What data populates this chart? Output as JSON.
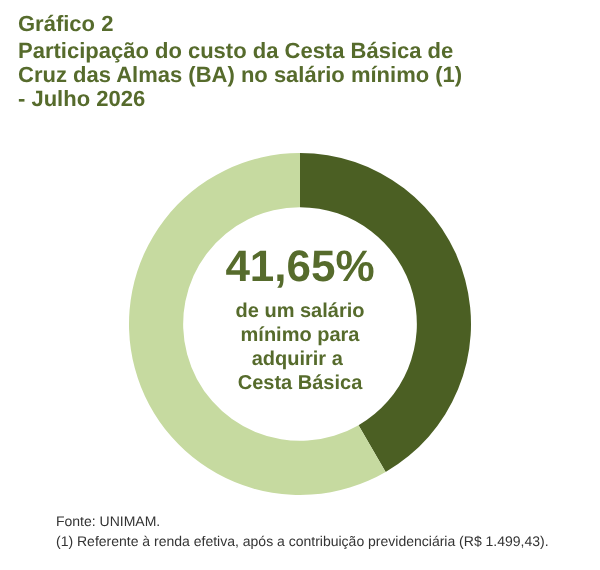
{
  "chart_data": {
    "type": "donut",
    "title": "Gráfico 2",
    "subtitle": "Participação do custo da Cesta Básica de Cruz das Almas (BA) no salário mínimo (1) - Julho 2026",
    "categories": [
      null,
      null
    ],
    "values": [
      41.65,
      58.35
    ],
    "colors": [
      "#4b5f23",
      "#c6daa0"
    ],
    "value_labels": [
      "41,65%",
      null
    ],
    "annotations": [
      "de um salário mínimo para adquirir a Cesta Básica",
      "Fonte: UNIMAM.",
      "(1) Referente à renda efetiva, após a contribuição previdenciária (R$ 1.499,43)."
    ]
  }
}
